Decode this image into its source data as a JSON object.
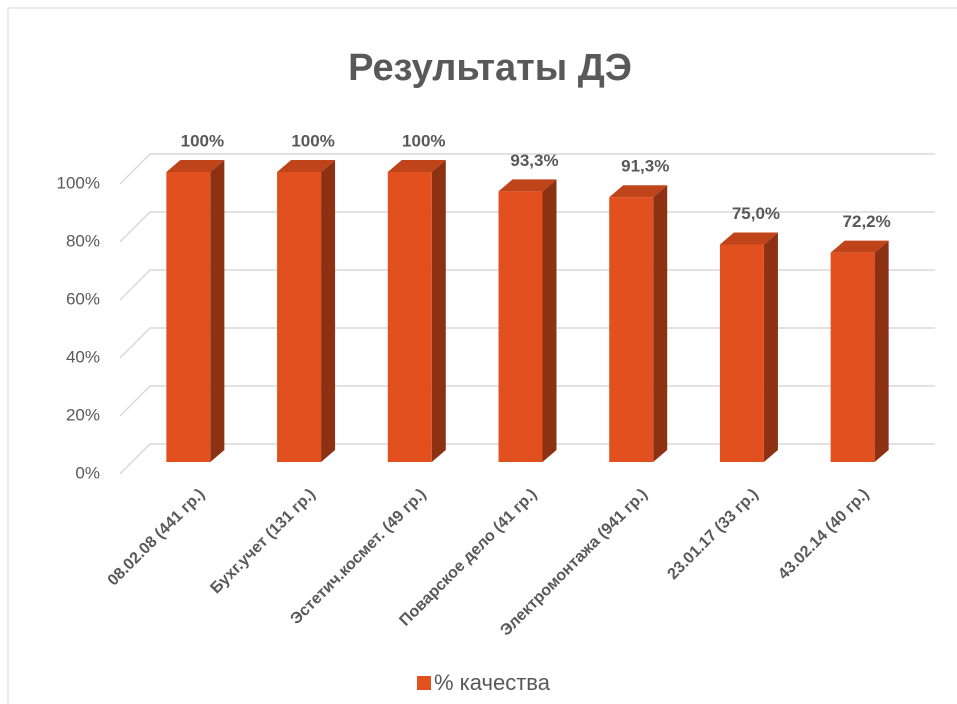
{
  "chart_data": {
    "type": "bar3d",
    "title": "Результаты ДЭ",
    "categories": [
      "08.02.08 (441 гр.)",
      "Бухг.учет (131 гр.)",
      "Эстетич.космет. (49 гр.)",
      "Поварское дело (41 гр.)",
      "Электромонтажа (941 гр.)",
      "23.01.17 (33 гр.)",
      "43.02.14 (40 гр.)"
    ],
    "series": [
      {
        "name": "% качества",
        "color": "#e2501f",
        "values": [
          100,
          100,
          100,
          93.3,
          91.3,
          75.0,
          72.2
        ],
        "value_labels": [
          "100%",
          "100%",
          "100%",
          "93,3%",
          "91,3%",
          "75,0%",
          "72,2%"
        ]
      }
    ],
    "ylim": [
      0,
      100
    ],
    "yticks": [
      {
        "value": 0,
        "label": "0%"
      },
      {
        "value": 20,
        "label": "20%"
      },
      {
        "value": 40,
        "label": "40%"
      },
      {
        "value": 60,
        "label": "60%"
      },
      {
        "value": 80,
        "label": "80%"
      },
      {
        "value": 100,
        "label": "100%"
      }
    ],
    "grid": true,
    "legend": "bottom"
  }
}
